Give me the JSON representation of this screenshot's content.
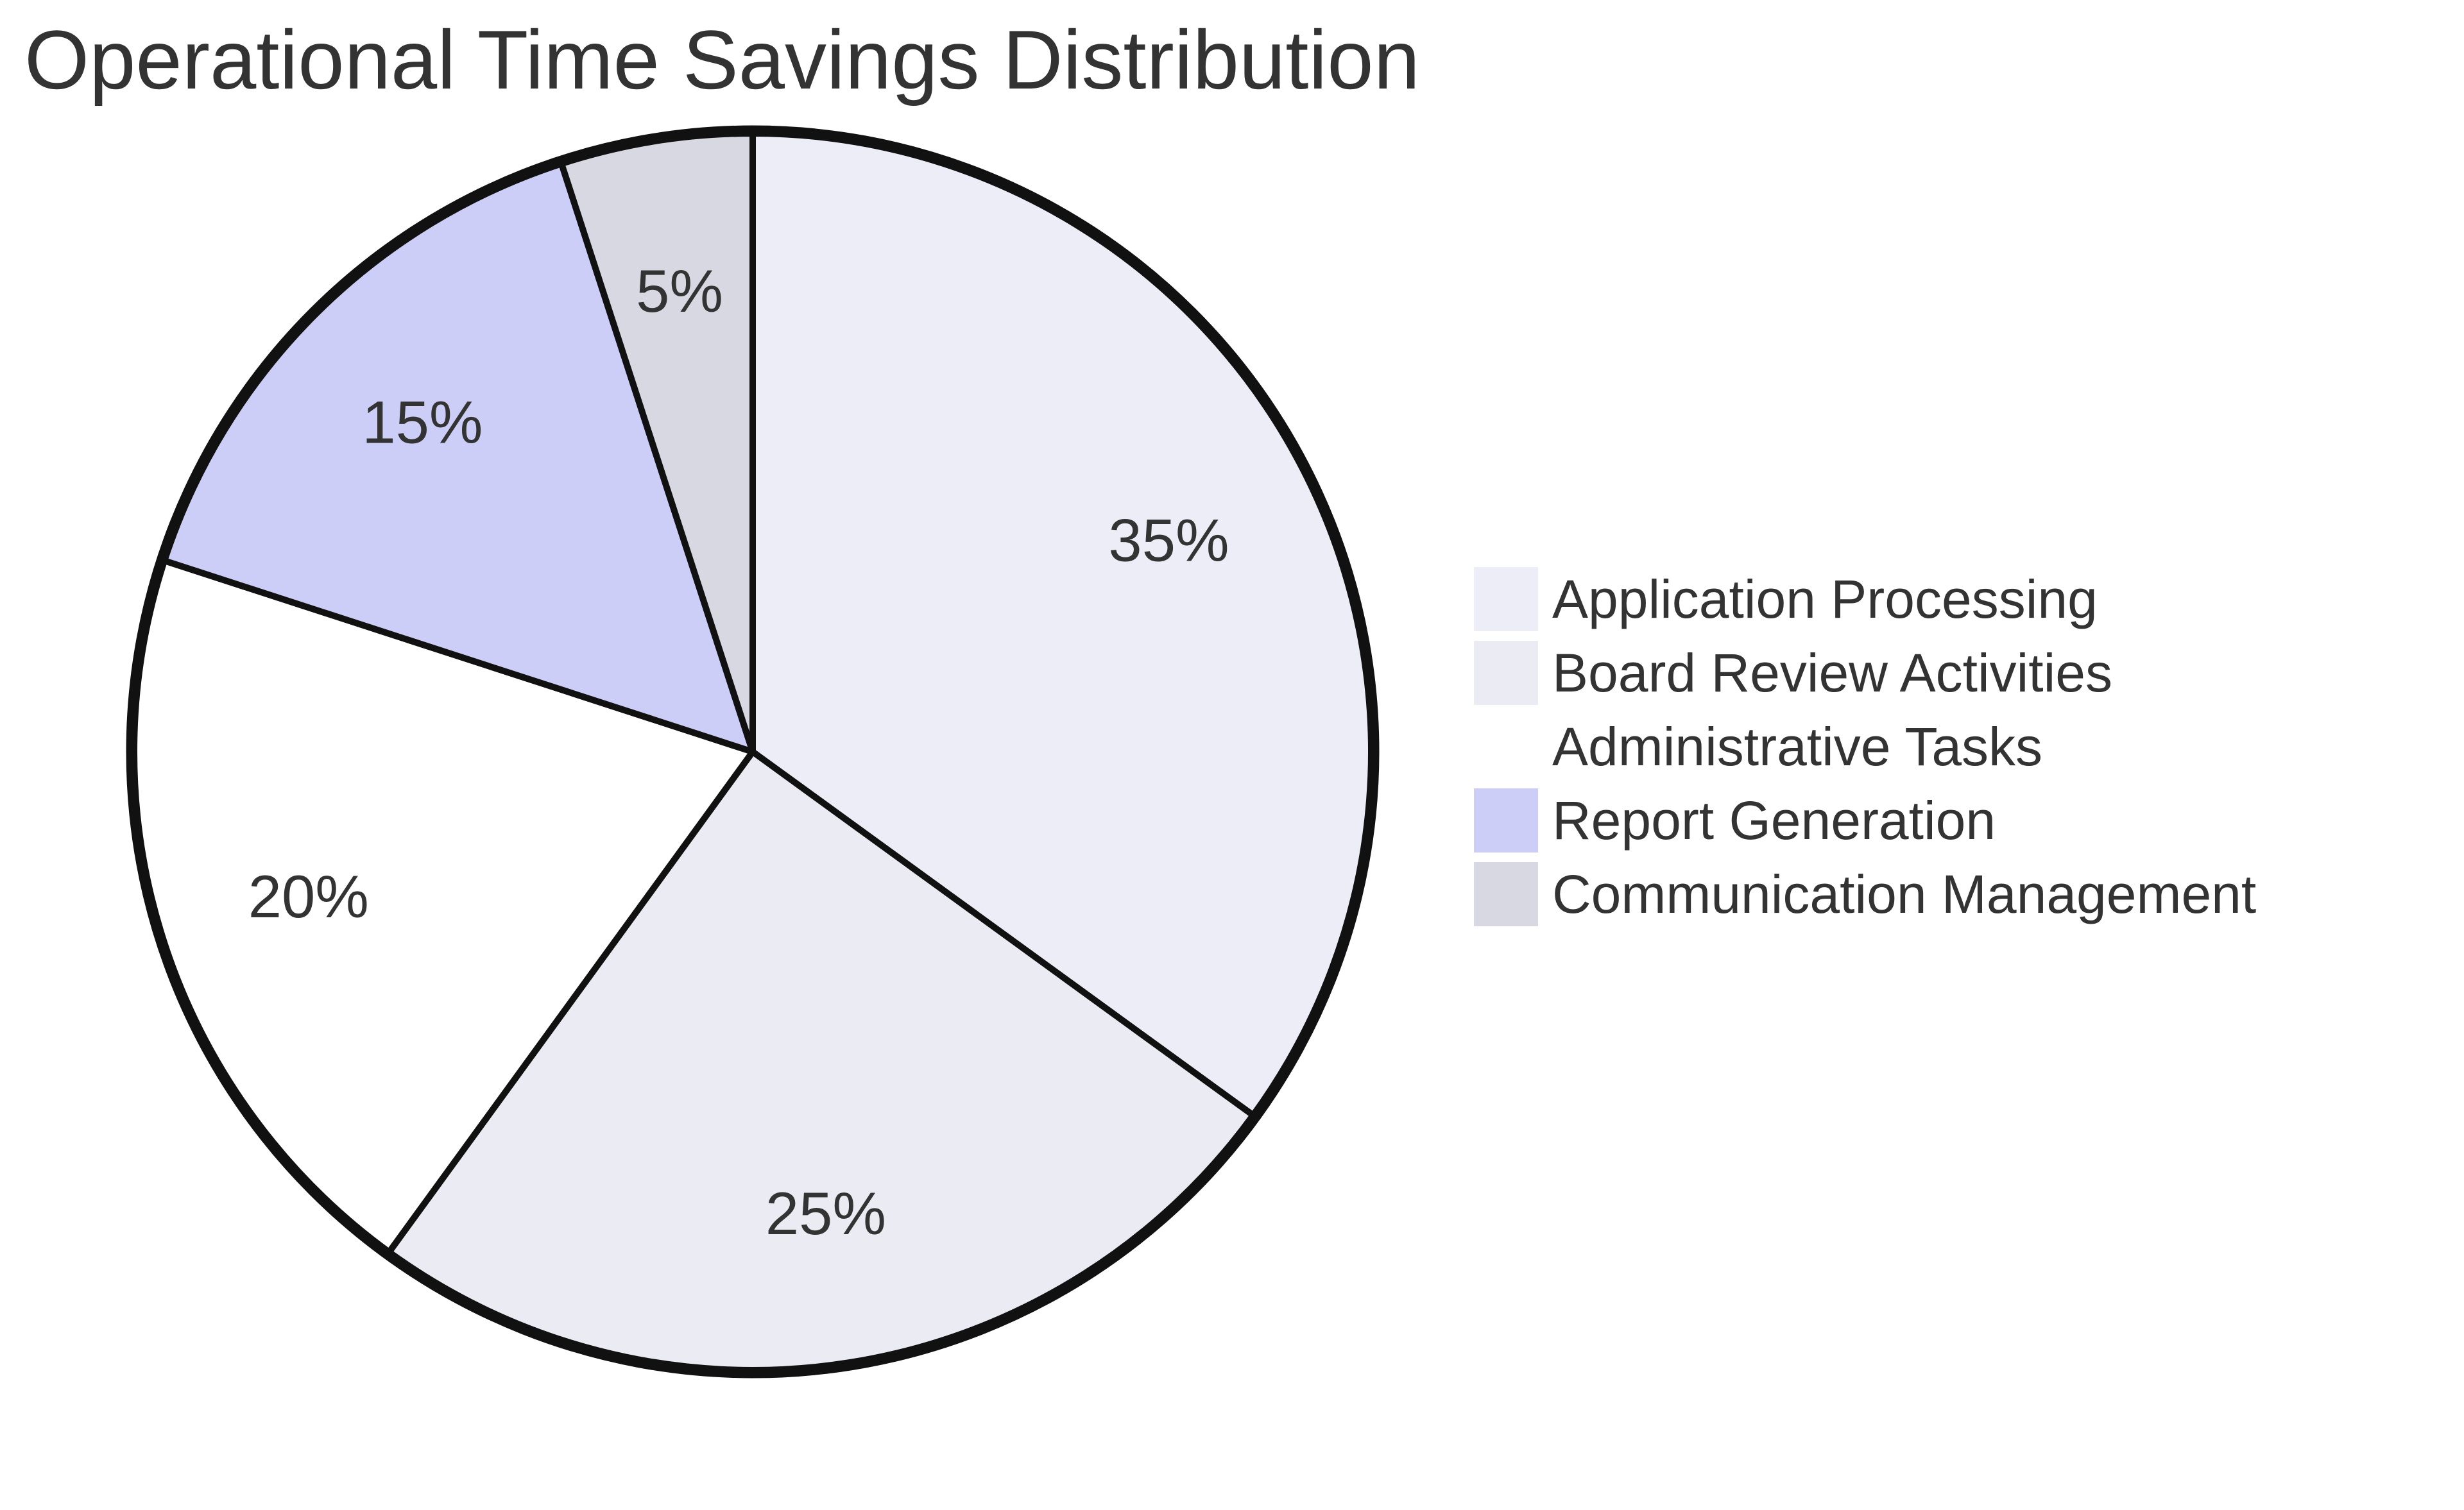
{
  "title": "Operational Time Savings Distribution",
  "chart_data": {
    "type": "pie",
    "title": "Operational Time Savings Distribution",
    "start_angle": "12 o'clock",
    "direction": "clockwise",
    "legend_position": "center right",
    "edge_color": "#111111",
    "rim_color": "#111111",
    "label_color": "#333333",
    "title_color": "#333333",
    "background_color": "#ffffff",
    "slices": [
      {
        "label": "Application Processing",
        "value": 35,
        "pct_label": "35%",
        "color": "#ededf8"
      },
      {
        "label": "Board Review Activities",
        "value": 25,
        "pct_label": "25%",
        "color": "#ebebf3"
      },
      {
        "label": "Administrative Tasks",
        "value": 20,
        "pct_label": "20%",
        "color": "#ffffff"
      },
      {
        "label": "Report Generation",
        "value": 15,
        "pct_label": "15%",
        "color": "#cccef8"
      },
      {
        "label": "Communication Management",
        "value": 5,
        "pct_label": "5%",
        "color": "#d8d8e3"
      }
    ]
  }
}
